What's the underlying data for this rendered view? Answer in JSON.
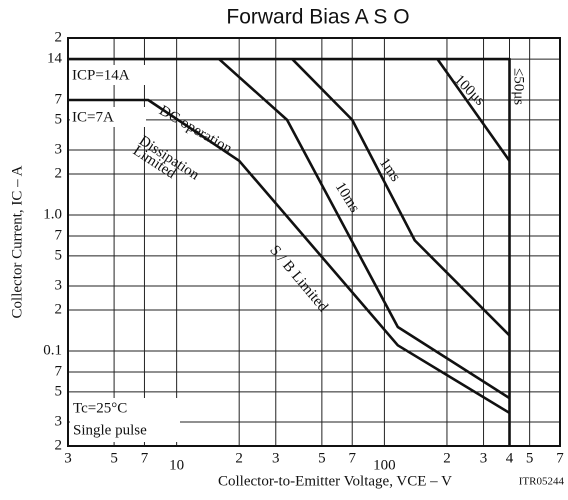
{
  "chart_data": {
    "type": "line",
    "title": "Forward Bias A S O",
    "x_label": "Collector-to-Emitter Voltage, VCE – V",
    "y_label": "Collector Current, IC – A",
    "log_x": true,
    "log_y": true,
    "grid": true,
    "color": "#111111",
    "xlim": [
      3,
      700
    ],
    "ylim": [
      0.02,
      20
    ],
    "xticks": [
      3,
      5,
      7,
      10,
      {
        "value": 20,
        "label": "2"
      },
      {
        "value": 30,
        "label": "3"
      },
      {
        "value": 50,
        "label": "5"
      },
      {
        "value": 70,
        "label": "7"
      },
      100,
      {
        "value": 200,
        "label": "2"
      },
      {
        "value": 300,
        "label": "3"
      },
      {
        "value": 400,
        "label": "4"
      },
      {
        "value": 500,
        "label": "5"
      },
      {
        "value": 700,
        "label": "7"
      }
    ],
    "yticks": [
      {
        "value": 20,
        "label": "2"
      },
      14,
      7,
      5,
      3,
      2,
      {
        "value": 1,
        "label": "1.0"
      },
      {
        "value": 0.7,
        "label": "7"
      },
      {
        "value": 0.5,
        "label": "5"
      },
      {
        "value": 0.3,
        "label": "3"
      },
      {
        "value": 0.2,
        "label": "2"
      },
      0.1,
      {
        "value": 0.07,
        "label": "7"
      },
      {
        "value": 0.05,
        "label": "5"
      },
      {
        "value": 0.03,
        "label": "3"
      },
      {
        "value": 0.02,
        "label": "2"
      }
    ],
    "series": [
      {
        "name": "≤50μs",
        "x": [
          3,
          400,
          400
        ],
        "values": [
          14,
          14,
          0.02
        ]
      },
      {
        "name": "100μs",
        "x": [
          180,
          400
        ],
        "values": [
          14,
          2.5
        ]
      },
      {
        "name": "1ms",
        "x": [
          36,
          70,
          140,
          400
        ],
        "values": [
          14,
          5,
          0.65,
          0.13
        ]
      },
      {
        "name": "10ms",
        "x": [
          16,
          34,
          116,
          400
        ],
        "values": [
          14,
          5,
          0.15,
          0.045
        ]
      },
      {
        "name": "DC operation",
        "x": [
          3,
          7.3,
          20,
          116,
          400
        ],
        "values": [
          7,
          7,
          2.5,
          0.11,
          0.035
        ]
      }
    ],
    "annotations": [
      "ICP=14A",
      "IC=7A",
      "Dissipation",
      "Limited",
      "S / B Limited",
      "Tc=25°C",
      "Single pulse",
      "ITR05244"
    ]
  }
}
